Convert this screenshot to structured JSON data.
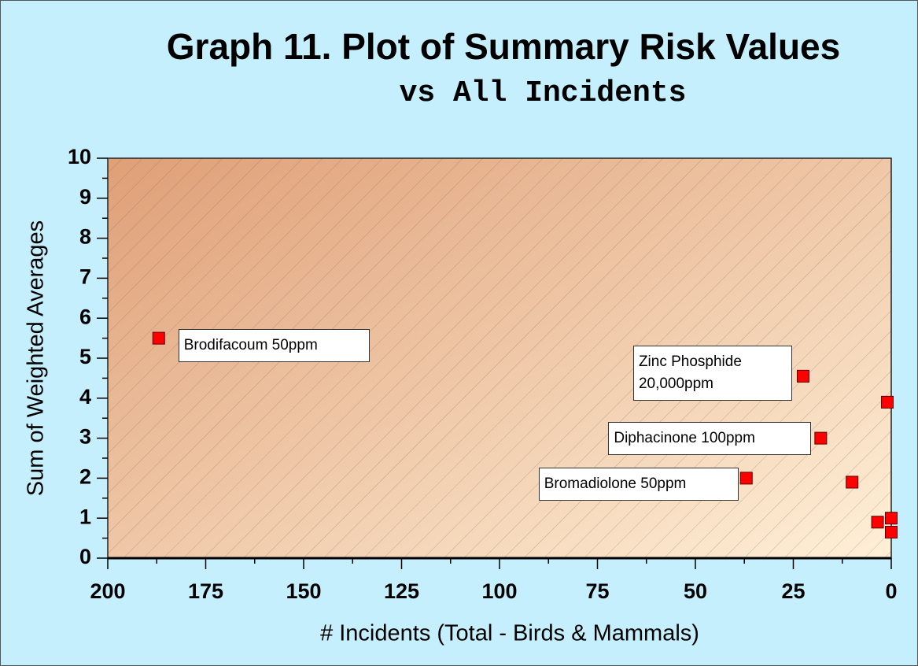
{
  "chart_data": {
    "type": "scatter",
    "title": "Graph 11.  Plot of Summary Risk Values",
    "subtitle": "vs All Incidents",
    "xlabel": "# Incidents (Total - Birds & Mammals)",
    "ylabel": "Sum of Weighted Averages",
    "x": [
      187,
      22.5,
      1,
      18,
      37,
      10,
      3.5,
      0,
      0
    ],
    "values": [
      5.5,
      4.55,
      3.9,
      3,
      2,
      1.9,
      0.9,
      1,
      0.65
    ],
    "point_labels": [
      "Brodifacoum 50ppm",
      "Zinc Phosphide 20,000ppm",
      null,
      "Diphacinone 100ppm",
      "Bromadiolone 50ppm",
      null,
      null,
      null,
      null
    ],
    "color": "#ff0000",
    "xlim": [
      200,
      0
    ],
    "xticks": [
      200,
      175,
      150,
      125,
      100,
      75,
      50,
      25,
      0
    ],
    "ylim": [
      0,
      10
    ],
    "yticks": [
      0,
      1,
      2,
      3,
      4,
      5,
      6,
      7,
      8,
      9,
      10
    ],
    "grid": false
  }
}
